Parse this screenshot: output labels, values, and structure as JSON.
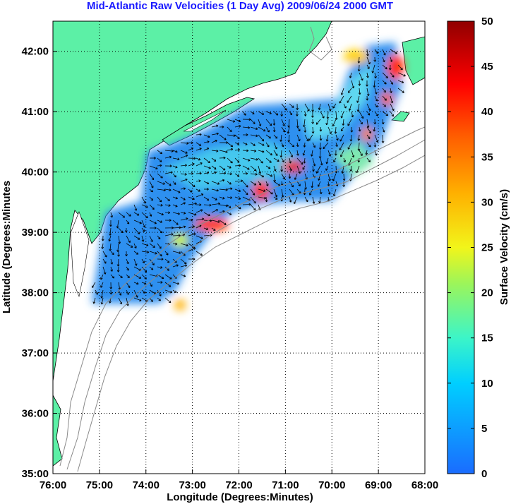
{
  "title": "Mid-Atlantic Raw Velocities (1 Day Avg) 2009/06/24 2000 GMT",
  "map": {
    "xlabel": "Longitude (Degrees:Minutes)",
    "ylabel": "Latitude (Degrees:Minutes",
    "x_ticks": [
      "76:00",
      "75:00",
      "74:00",
      "73:00",
      "72:00",
      "71:00",
      "70:00",
      "69:00",
      "68:00"
    ],
    "y_ticks": [
      "42:00",
      "41:00",
      "40:00",
      "39:00",
      "38:00",
      "37:00",
      "36:00",
      "35:00"
    ],
    "lon_range": [
      -76,
      -68
    ],
    "lat_range": [
      35,
      42.5
    ],
    "land_color": "#5cf0a6",
    "grid": "dotted"
  },
  "colorbar": {
    "label": "Surface Velocity (cm/s)",
    "ticks": [
      "0",
      "5",
      "10",
      "15",
      "20",
      "25",
      "30",
      "35",
      "40",
      "45",
      "50"
    ],
    "range": [
      0,
      50
    ],
    "colormap": "jet"
  }
}
